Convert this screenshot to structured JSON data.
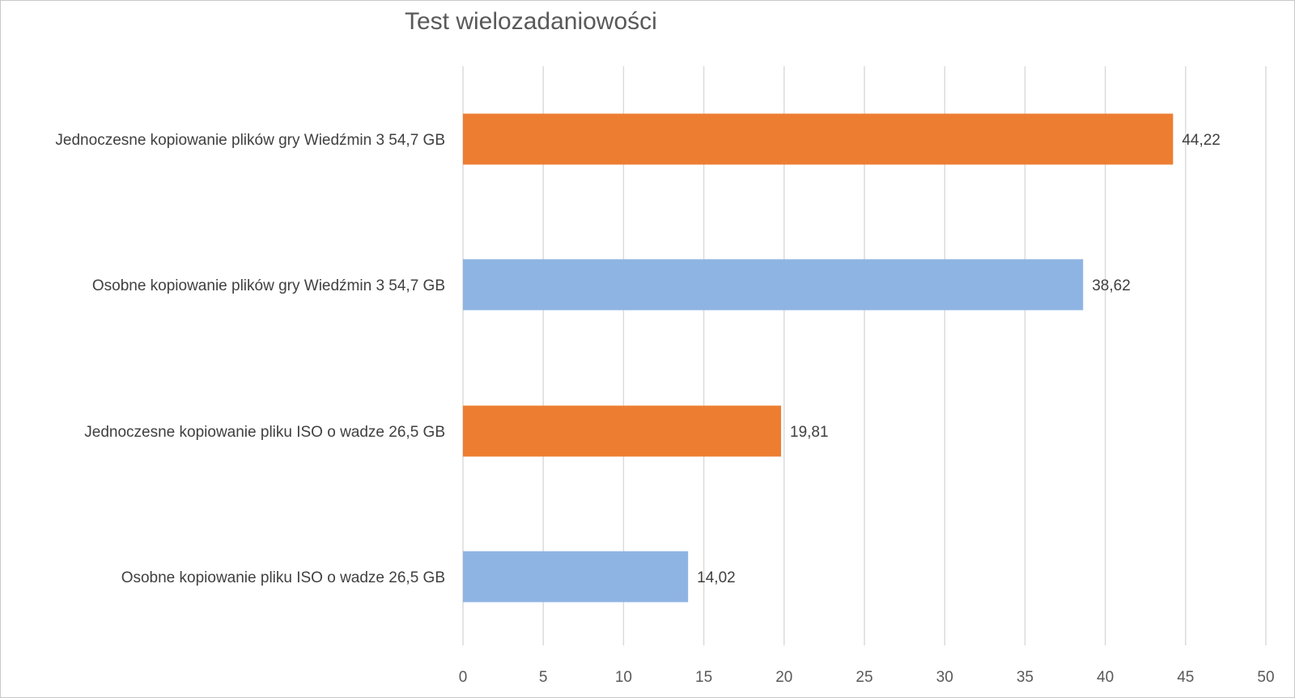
{
  "chart_data": {
    "type": "bar",
    "orientation": "horizontal",
    "title": "Test wielozadaniowości",
    "categories": [
      "Jednoczesne kopiowanie plików gry Wiedźmin 3 54,7 GB",
      "Osobne kopiowanie plików gry Wiedźmin 3 54,7 GB",
      "Jednoczesne kopiowanie pliku ISO o wadze 26,5 GB",
      "Osobne kopiowanie pliku ISO o wadze 26,5 GB"
    ],
    "values": [
      44.22,
      38.62,
      19.81,
      14.02
    ],
    "value_labels": [
      "44,22",
      "38,62",
      "19,81",
      "14,02"
    ],
    "bar_colors": [
      "#ed7d31",
      "#8eb4e3",
      "#ed7d31",
      "#8eb4e3"
    ],
    "xlim": [
      0,
      50
    ],
    "x_ticks": [
      0,
      5,
      10,
      15,
      20,
      25,
      30,
      35,
      40,
      45,
      50
    ],
    "x_tick_labels": [
      "0",
      "5",
      "10",
      "15",
      "20",
      "25",
      "30",
      "35",
      "40",
      "45",
      "50"
    ],
    "grid": true,
    "legend": false,
    "xlabel": "",
    "ylabel": ""
  }
}
